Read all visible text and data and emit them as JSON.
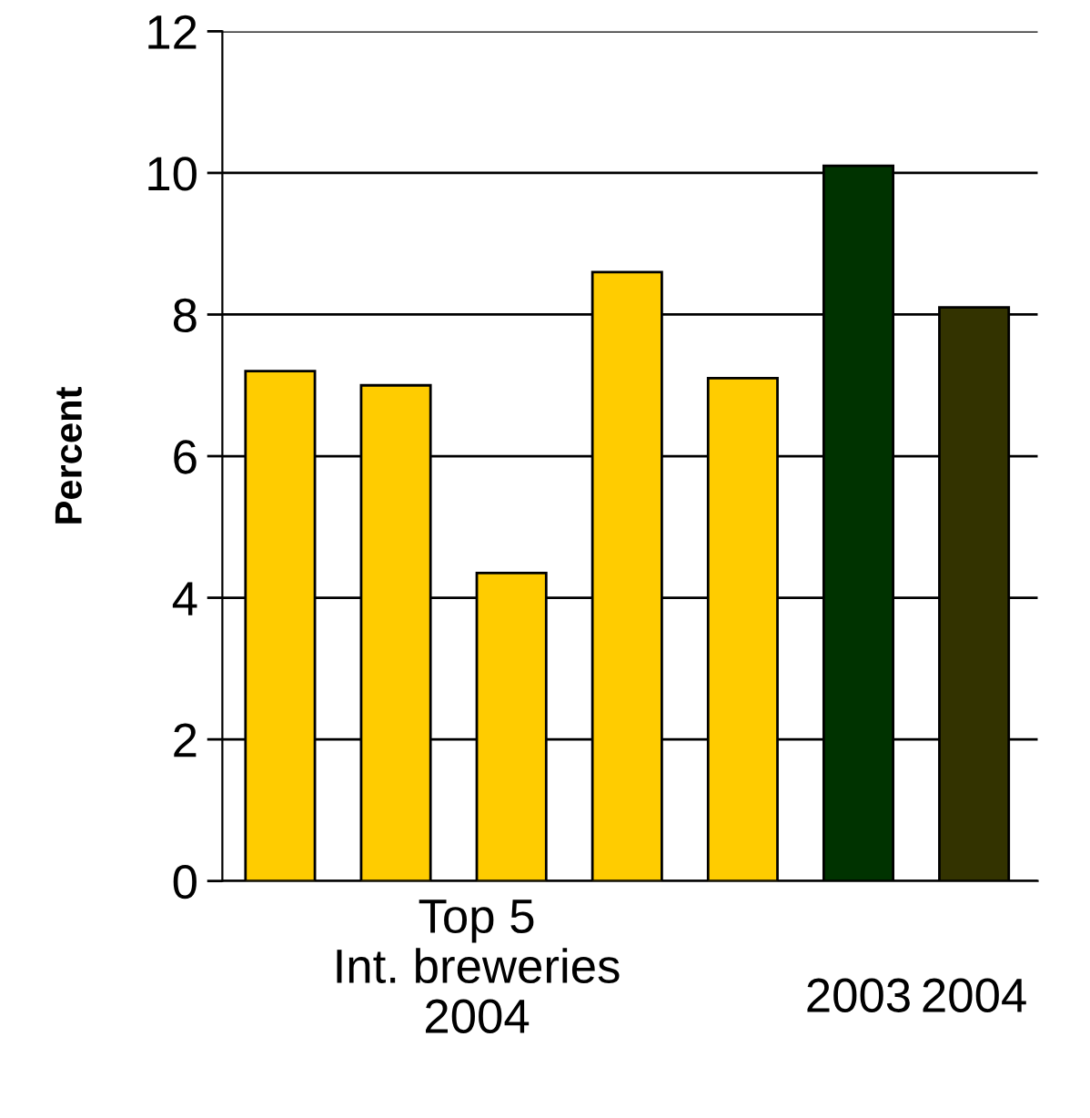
{
  "chart_data": {
    "type": "bar",
    "ylabel": "Percent",
    "categories": [
      null,
      null,
      null,
      null,
      null,
      "2003",
      "2004"
    ],
    "values": [
      7.2,
      7.0,
      4.35,
      8.6,
      7.1,
      10.1,
      8.1
    ],
    "colors": [
      "#ffcc00",
      "#ffcc00",
      "#ffcc00",
      "#ffcc00",
      "#ffcc00",
      "#003300",
      "#333300"
    ],
    "ylim": [
      0,
      12
    ],
    "yticks": [
      0,
      2,
      4,
      6,
      8,
      10,
      12
    ],
    "grid": "y",
    "annotations": [
      "Top 5\nInt. breweries\n2004"
    ]
  }
}
